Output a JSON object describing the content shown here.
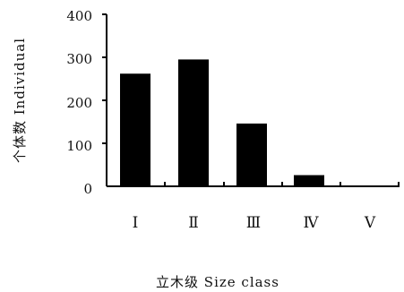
{
  "chart_data": {
    "type": "bar",
    "title": "",
    "xlabel": "立木级 Size class",
    "ylabel": "个体数 Individual",
    "categories": [
      "Ⅰ",
      "Ⅱ",
      "Ⅲ",
      "Ⅳ",
      "Ⅴ"
    ],
    "values": [
      262,
      295,
      146,
      26,
      0
    ],
    "ylim": [
      0,
      400
    ],
    "yticks": [
      "0",
      "100",
      "200",
      "300",
      "400"
    ],
    "bar_color": "#000000",
    "grid": false,
    "legend": "none"
  }
}
